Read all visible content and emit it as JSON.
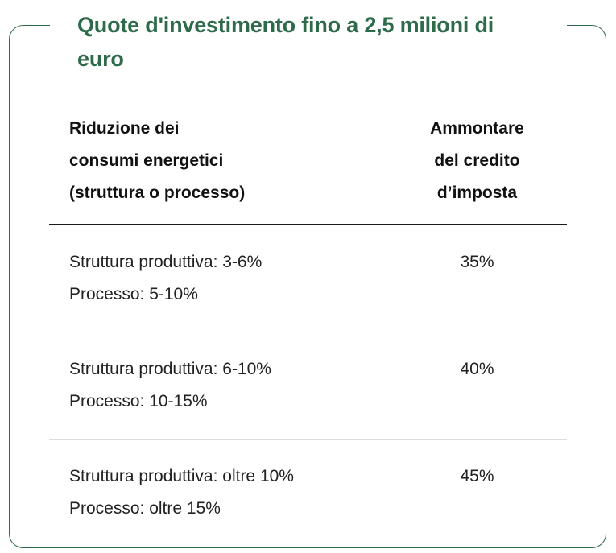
{
  "card": {
    "title": "Quote d'investimento fino a 2,5 milioni di euro",
    "accent_color": "#2e6b4a"
  },
  "table": {
    "headers": {
      "reduction": "Riduzione dei\nconsumi energetici\n(struttura o processo)",
      "credit": "Ammontare\ndel credito\nd’imposta"
    },
    "rows": [
      {
        "struttura": "Struttura produttiva: 3-6%",
        "processo": "Processo: 5-10%",
        "credito": "35%"
      },
      {
        "struttura": "Struttura produttiva: 6-10%",
        "processo": "Processo: 10-15%",
        "credito": "40%"
      },
      {
        "struttura": "Struttura produttiva: oltre 10%",
        "processo": "Processo: oltre 15%",
        "credito": "45%"
      }
    ]
  }
}
